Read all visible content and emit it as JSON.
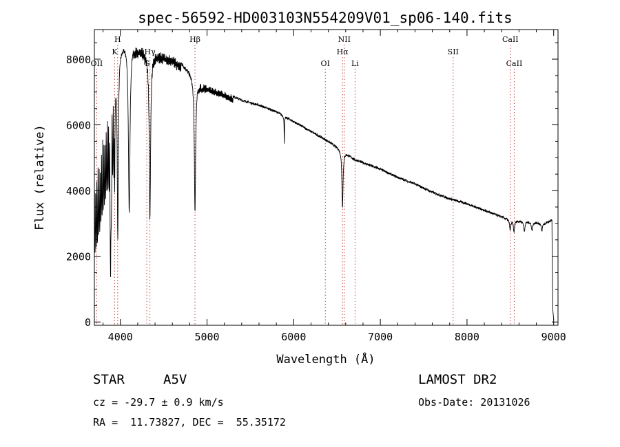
{
  "chart_data": {
    "type": "line",
    "title": "spec-56592-HD003103N554209V01_sp06-140.fits",
    "xlabel": "Wavelength (Å)",
    "ylabel": "Flux (relative)",
    "xlim": [
      3700,
      9050
    ],
    "ylim": [
      -100,
      8900
    ],
    "xticks": [
      4000,
      5000,
      6000,
      7000,
      8000,
      9000
    ],
    "yticks": [
      0,
      2000,
      4000,
      6000,
      8000
    ],
    "grid": false,
    "continuum": {
      "x": [
        3700,
        3750,
        3800,
        3850,
        3900,
        3950,
        4000,
        4050,
        4100,
        4150,
        4200,
        4300,
        4400,
        4500,
        4600,
        4700,
        4800,
        4900,
        5000,
        5200,
        5400,
        5600,
        5800,
        6000,
        6200,
        6400,
        6600,
        6700,
        7000,
        7200,
        7400,
        7600,
        7800,
        8000,
        8200,
        8400,
        8500,
        8700,
        8900,
        8980,
        8990,
        9000
      ],
      "y": [
        4200,
        4800,
        5600,
        6300,
        7100,
        7600,
        8300,
        8500,
        8600,
        8500,
        8450,
        8300,
        8250,
        8200,
        8100,
        7900,
        7600,
        7300,
        7200,
        7000,
        6750,
        6600,
        6400,
        6100,
        5800,
        5500,
        5150,
        4950,
        4650,
        4400,
        4200,
        3950,
        3750,
        3600,
        3400,
        3200,
        3100,
        3050,
        3000,
        3100,
        400,
        50
      ]
    },
    "absorption_lines": [
      {
        "name": "H8",
        "center": 3889,
        "depth": 4300,
        "width": 6
      },
      {
        "name": "CaII K",
        "center": 3934,
        "depth": 3200,
        "width": 4
      },
      {
        "name": "Hepsilon",
        "center": 3970,
        "depth": 5300,
        "width": 7
      },
      {
        "name": "Hdelta",
        "center": 4102,
        "depth": 5300,
        "width": 11
      },
      {
        "name": "Hgamma",
        "center": 4341,
        "depth": 5000,
        "width": 9
      },
      {
        "name": "Hbeta",
        "center": 4861,
        "depth": 4100,
        "width": 9
      },
      {
        "name": "NaD",
        "center": 5892,
        "depth": 800,
        "width": 3
      },
      {
        "name": "Halpha",
        "center": 6563,
        "depth": 1700,
        "width": 8
      },
      {
        "name": "CaII",
        "center": 8498,
        "depth": 300,
        "width": 8
      },
      {
        "name": "CaII",
        "center": 8542,
        "depth": 350,
        "width": 8
      },
      {
        "name": "CaII",
        "center": 8662,
        "depth": 300,
        "width": 8
      },
      {
        "name": "Pa",
        "center": 8750,
        "depth": 250,
        "width": 8
      },
      {
        "name": "Pa",
        "center": 8863,
        "depth": 250,
        "width": 8
      }
    ],
    "reference_lines": [
      {
        "label": "OII",
        "wavelength": 3727,
        "row": 3
      },
      {
        "label": "K",
        "wavelength": 3934,
        "row": 2
      },
      {
        "label": "H",
        "wavelength": 3969,
        "row": 1
      },
      {
        "label": "G",
        "wavelength": 4305,
        "row": 3
      },
      {
        "label": "Hγ",
        "wavelength": 4341,
        "row": 2
      },
      {
        "label": "Hβ",
        "wavelength": 4861,
        "row": 1
      },
      {
        "label": "OI",
        "wavelength": 6365,
        "row": 3
      },
      {
        "label": "NII",
        "wavelength": 6584,
        "row": 1
      },
      {
        "label": "Hα",
        "wavelength": 6563,
        "row": 2
      },
      {
        "label": "Li",
        "wavelength": 6708,
        "row": 3
      },
      {
        "label": "SII",
        "wavelength": 7840,
        "row": 2
      },
      {
        "label": "CaII",
        "wavelength": 8500,
        "row": 1
      },
      {
        "label": "CaII",
        "wavelength": 8545,
        "row": 3
      }
    ]
  },
  "info": {
    "object_type": "STAR",
    "subclass": "A5V",
    "survey": "LAMOST DR2",
    "redshift": "cz = -29.7 ± 0.9 km/s",
    "obs_date": "Obs-Date: 20131026",
    "coords": "RA =  11.73827, DEC =  55.35172"
  },
  "colors": {
    "line": "#000000",
    "marker": "#c04040",
    "background": "#ffffff"
  }
}
